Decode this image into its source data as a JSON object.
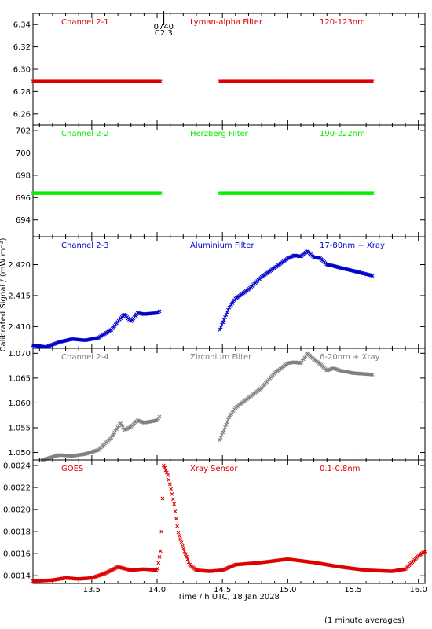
{
  "ylabel": "Calibrated Signal / (mW m⁻²)",
  "xlabel": "Time / h UTC, 18 Jan 2028",
  "footnote": "(1 minute averages)",
  "event_marker": {
    "time": 14.05,
    "label_top": "0740",
    "label_bottom": "C2.3"
  },
  "chart_data": {
    "type": "scatter",
    "xlim": [
      13.05,
      16.05
    ],
    "xticks": [
      13.5,
      14.0,
      14.5,
      15.0,
      15.5,
      16.0
    ],
    "xtick_labels": [
      "13.5",
      "14.0",
      "14.5",
      "15.0",
      "15.5",
      "16.0"
    ],
    "panels": [
      {
        "name": "Channel 2-1",
        "filter": "Lyman-alpha Filter",
        "band": "120-123nm",
        "color": "#dd0000",
        "ylim": [
          6.25,
          6.35
        ],
        "yticks": [
          6.26,
          6.28,
          6.3,
          6.32,
          6.34
        ],
        "ytick_labels": [
          "6.26",
          "6.28",
          "6.30",
          "6.32",
          "6.34"
        ],
        "segments": [
          {
            "x": [
              13.05,
              14.03
            ],
            "y": [
              6.289,
              6.289
            ]
          },
          {
            "x": [
              14.48,
              15.65
            ],
            "y": [
              6.289,
              6.289
            ]
          }
        ]
      },
      {
        "name": "Channel 2-2",
        "filter": "Herzberg Filter",
        "band": "190-222nm",
        "color": "#00ee00",
        "ylim": [
          692.5,
          702.5
        ],
        "yticks": [
          694,
          696,
          698,
          700,
          702
        ],
        "ytick_labels": [
          "694",
          "696",
          "698",
          "700",
          "702"
        ],
        "segments": [
          {
            "x": [
              13.05,
              14.03
            ],
            "y": [
              696.4,
              696.4
            ]
          },
          {
            "x": [
              14.48,
              15.65
            ],
            "y": [
              696.4,
              696.4
            ]
          }
        ]
      },
      {
        "name": "Channel 2-3",
        "filter": "Aluminium Filter",
        "band": "17-80nm + Xray",
        "color": "#0000cc",
        "ylim": [
          2.4065,
          2.4245
        ],
        "yticks": [
          2.41,
          2.415,
          2.42
        ],
        "ytick_labels": [
          "2.410",
          "2.415",
          "2.420"
        ],
        "segments": [
          {
            "x": [
              13.05,
              13.15,
              13.25,
              13.35,
              13.45,
              13.55,
              13.65,
              13.72,
              13.75,
              13.8,
              13.85,
              13.9,
              14.0,
              14.02
            ],
            "y": [
              2.407,
              2.4067,
              2.4075,
              2.408,
              2.4078,
              2.4082,
              2.4095,
              2.4113,
              2.412,
              2.4108,
              2.4122,
              2.412,
              2.4122,
              2.4125
            ]
          },
          {
            "x": [
              14.48,
              14.55,
              14.6,
              14.7,
              14.8,
              14.9,
              15.0,
              15.05,
              15.1,
              15.15,
              15.2,
              15.25,
              15.3,
              15.35,
              15.4,
              15.5,
              15.65
            ],
            "y": [
              2.4095,
              2.413,
              2.4145,
              2.416,
              2.418,
              2.4195,
              2.421,
              2.4215,
              2.4213,
              2.4222,
              2.4212,
              2.421,
              2.42,
              2.4198,
              2.4195,
              2.419,
              2.4182
            ]
          }
        ]
      },
      {
        "name": "Channel 2-4",
        "filter": "Zirconium Filter",
        "band": "6-20nm + Xray",
        "color": "#808080",
        "ylim": [
          1.0485,
          1.071
        ],
        "yticks": [
          1.05,
          1.055,
          1.06,
          1.065,
          1.07
        ],
        "ytick_labels": [
          "1.050",
          "1.055",
          "1.060",
          "1.065",
          "1.070"
        ],
        "segments": [
          {
            "x": [
              13.05,
              13.15,
              13.25,
              13.35,
              13.45,
              13.55,
              13.65,
              13.72,
              13.75,
              13.8,
              13.85,
              13.9,
              14.0,
              14.02
            ],
            "y": [
              1.048,
              1.0487,
              1.0495,
              1.0493,
              1.0497,
              1.0505,
              1.053,
              1.056,
              1.0545,
              1.0552,
              1.0565,
              1.056,
              1.0565,
              1.0573
            ]
          },
          {
            "x": [
              14.48,
              14.55,
              14.6,
              14.7,
              14.8,
              14.9,
              15.0,
              15.05,
              15.1,
              15.15,
              15.2,
              15.25,
              15.3,
              15.35,
              15.4,
              15.5,
              15.65
            ],
            "y": [
              1.0525,
              1.057,
              1.059,
              1.061,
              1.063,
              1.066,
              1.068,
              1.0682,
              1.068,
              1.07,
              1.0688,
              1.0678,
              1.0665,
              1.067,
              1.0665,
              1.066,
              1.0657
            ]
          }
        ]
      },
      {
        "name": "GOES",
        "filter": "Xray Sensor",
        "band": "0.1-0.8nm",
        "color": "#dd0000",
        "ylim": [
          0.00133,
          0.00245
        ],
        "yticks": [
          0.0014,
          0.0016,
          0.0018,
          0.002,
          0.0022,
          0.0024
        ],
        "ytick_labels": [
          "0.0014",
          "0.0016",
          "0.0018",
          "0.0020",
          "0.0022",
          "0.0024"
        ],
        "segments": [
          {
            "x": [
              13.05,
              13.2,
              13.3,
              13.4,
              13.5,
              13.6,
              13.7,
              13.8,
              13.9,
              14.0,
              14.03,
              14.05,
              14.08,
              14.1,
              14.13,
              14.16,
              14.2,
              14.25,
              14.3,
              14.4,
              14.5,
              14.6,
              14.8,
              15.0,
              15.2,
              15.4,
              15.6,
              15.8,
              15.9,
              16.0,
              16.05
            ],
            "y": [
              0.00135,
              0.00136,
              0.00138,
              0.00137,
              0.00138,
              0.00142,
              0.00148,
              0.00145,
              0.00146,
              0.00145,
              0.00165,
              0.0024,
              0.00232,
              0.00222,
              0.00205,
              0.0018,
              0.00165,
              0.0015,
              0.00145,
              0.00144,
              0.00145,
              0.0015,
              0.00152,
              0.00155,
              0.00152,
              0.00148,
              0.00145,
              0.00144,
              0.00146,
              0.00158,
              0.00162
            ]
          }
        ]
      }
    ]
  }
}
